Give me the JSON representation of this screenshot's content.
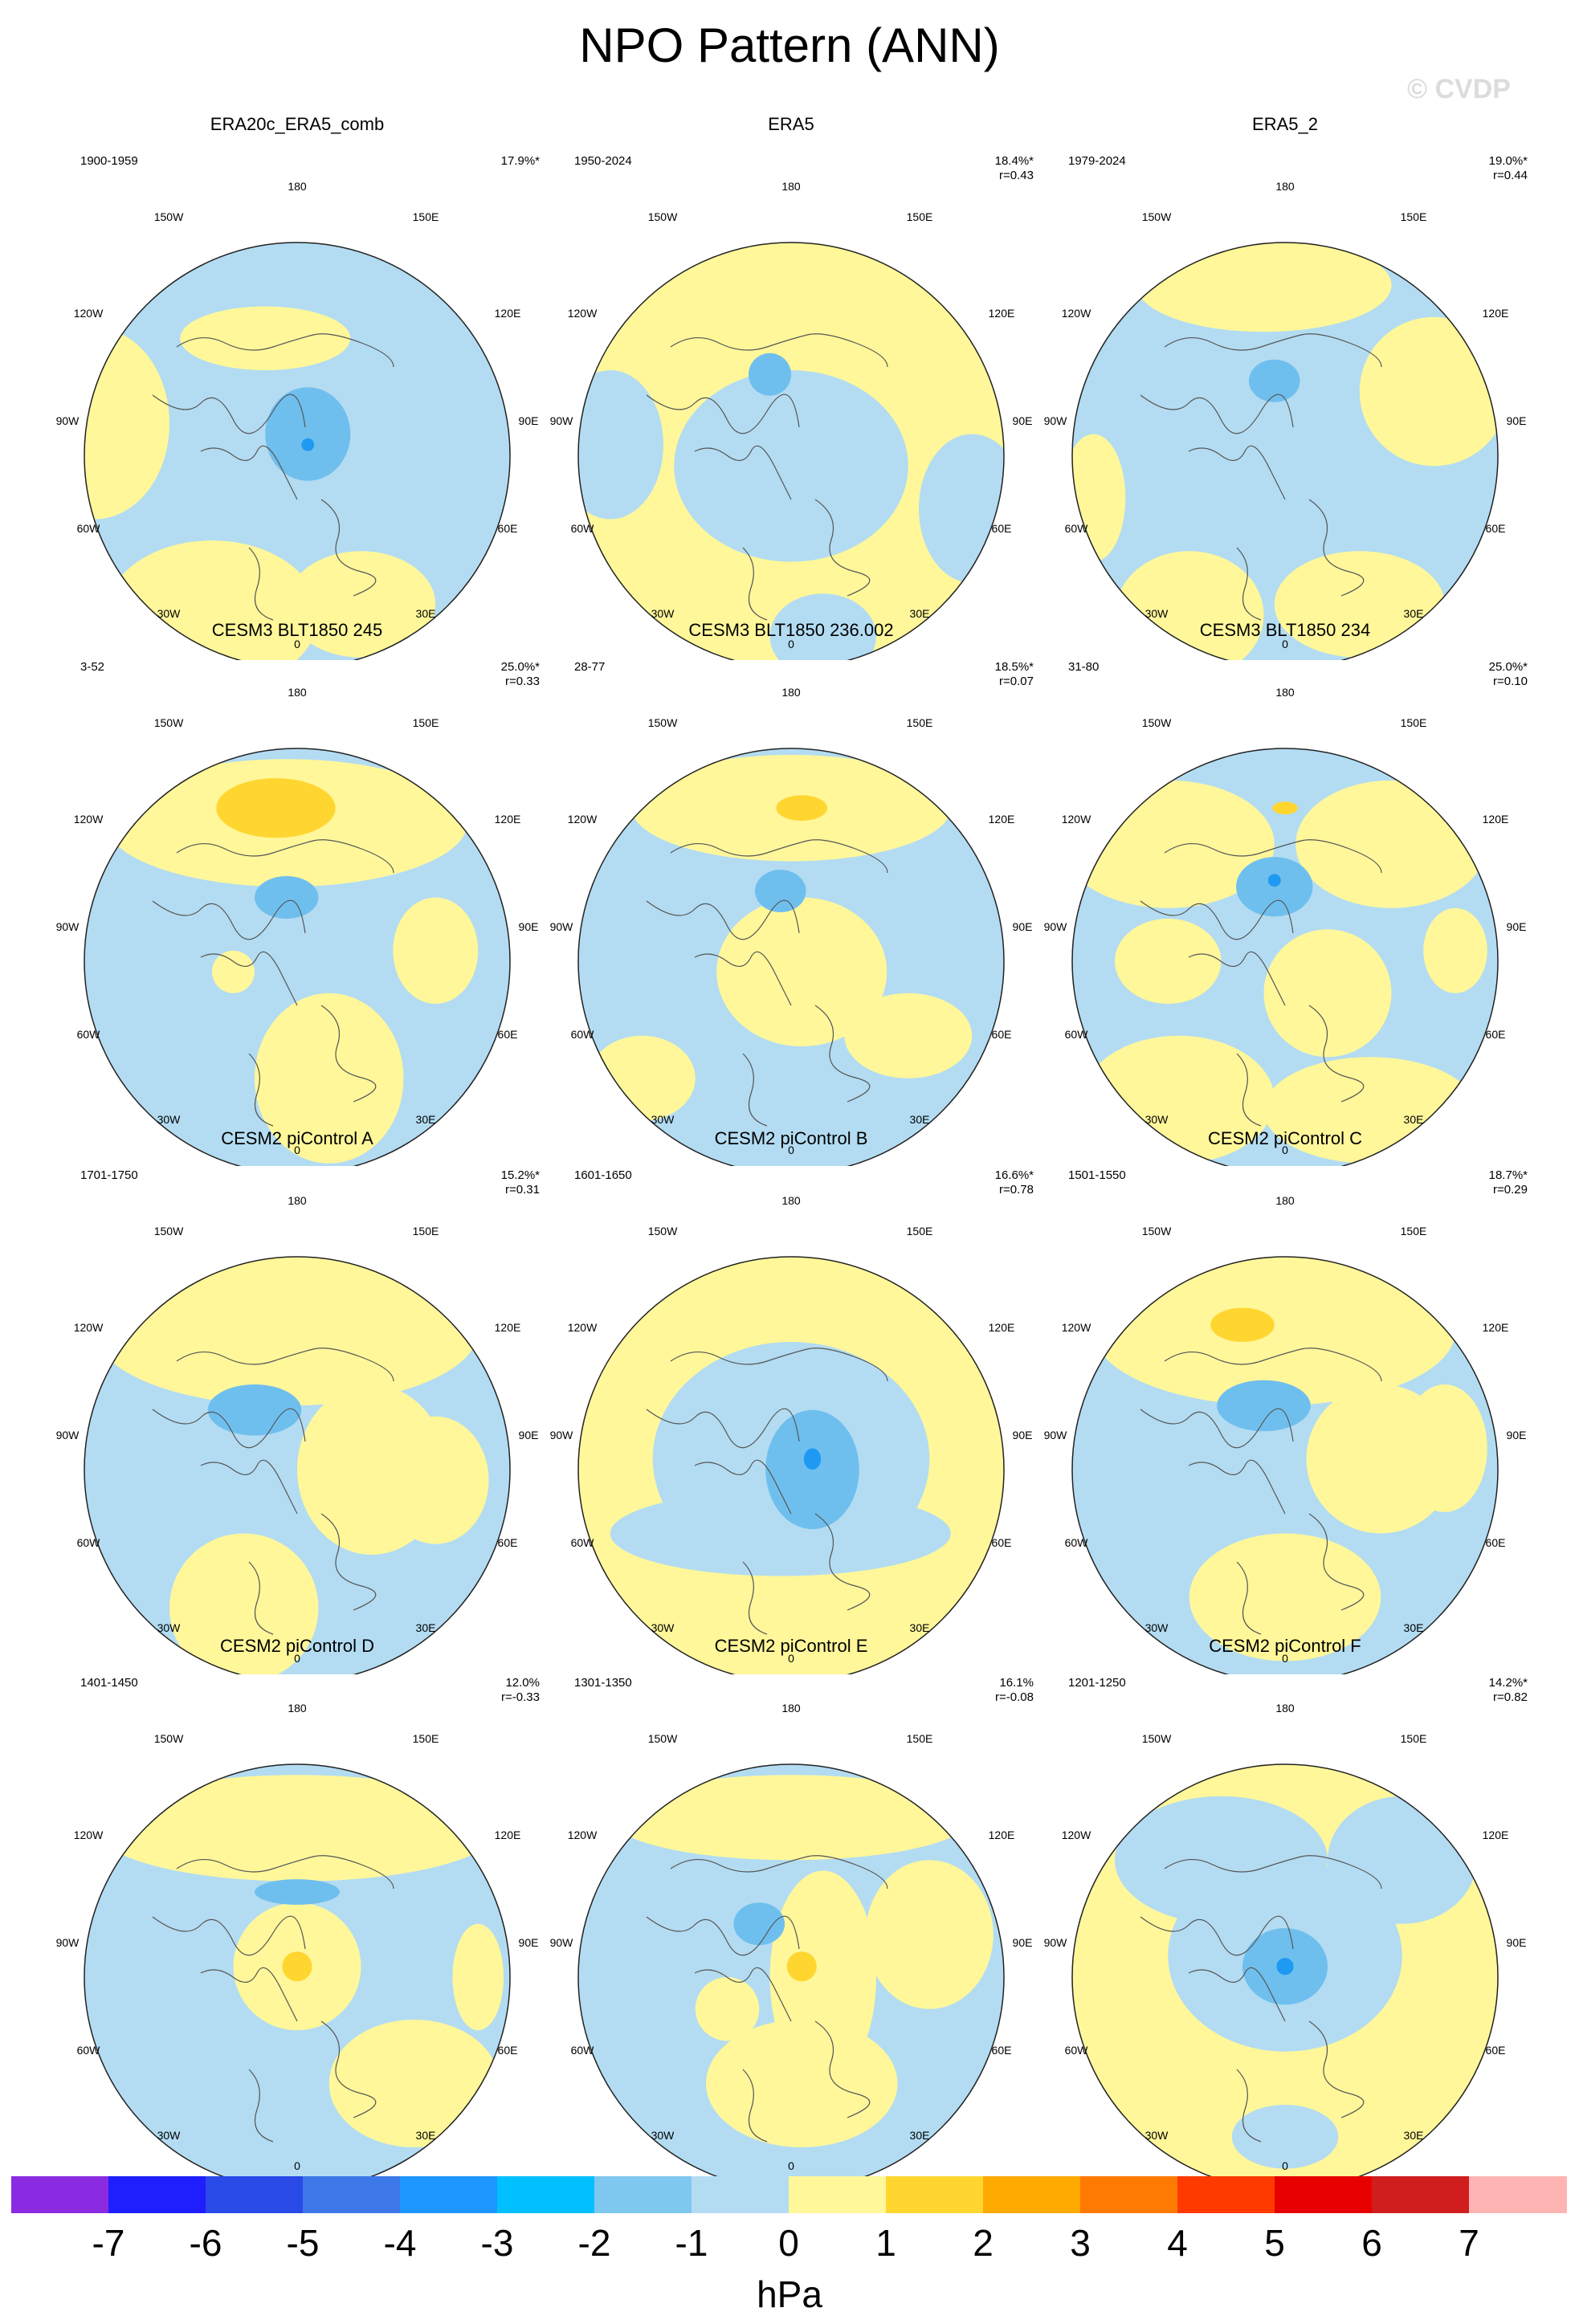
{
  "title": "NPO Pattern (ANN)",
  "watermark": "© CVDP",
  "colors": {
    "pos": "#fff79a",
    "pos_strong": "#ffd630",
    "neg": "#b3dcf2",
    "neg_strong": "#6fbfee",
    "neg_core": "#1e9af2",
    "coast": "#555555",
    "rim": "#222222"
  },
  "map_labels": {
    "top": "180",
    "upper_left": "150W",
    "upper_right": "150E",
    "left_upper": "120W",
    "right_upper": "120E",
    "left_mid": "90W",
    "right_mid": "90E",
    "left_lower": "60W",
    "right_lower": "60E",
    "lower_left": "30W",
    "lower_right": "30E",
    "bottom": "0"
  },
  "panels": [
    {
      "title": "ERA20c_ERA5_comb",
      "period": "1900-1959",
      "pct": "17.9%*",
      "r": "",
      "base": "neg",
      "pos_blobs": [
        [
          -0.95,
          0.15,
          0.35,
          0.45
        ],
        [
          -0.4,
          -0.75,
          0.5,
          0.35
        ],
        [
          0.3,
          -0.7,
          0.35,
          0.25
        ],
        [
          -0.15,
          0.55,
          0.4,
          0.15
        ]
      ],
      "neg_strong": [
        [
          0.05,
          0.1,
          0.2,
          0.22
        ]
      ],
      "pos_strong": [],
      "neg_core": [
        [
          0.05,
          0.05,
          0.03,
          0.03
        ]
      ]
    },
    {
      "title": "ERA5",
      "period": "1950-2024",
      "pct": "18.4%*",
      "r": "r=0.43",
      "base": "pos",
      "neg_blobs": [
        [
          0.0,
          -0.05,
          0.55,
          0.45
        ],
        [
          -0.85,
          0.05,
          0.25,
          0.35
        ],
        [
          0.85,
          -0.25,
          0.25,
          0.35
        ],
        [
          0.15,
          -0.85,
          0.25,
          0.2
        ]
      ],
      "neg_strong": [
        [
          -0.1,
          0.38,
          0.1,
          0.1
        ]
      ],
      "pos_strong": [],
      "neg_core": []
    },
    {
      "title": "ERA5_2",
      "period": "1979-2024",
      "pct": "19.0%*",
      "r": "r=0.44",
      "base": "neg",
      "pos_blobs": [
        [
          -0.1,
          0.8,
          0.6,
          0.22
        ],
        [
          0.7,
          0.3,
          0.35,
          0.35
        ],
        [
          -0.45,
          -0.75,
          0.35,
          0.3
        ],
        [
          0.35,
          -0.7,
          0.4,
          0.25
        ],
        [
          -0.9,
          -0.2,
          0.15,
          0.3
        ]
      ],
      "neg_strong": [
        [
          -0.05,
          0.35,
          0.12,
          0.1
        ]
      ],
      "pos_strong": [],
      "neg_core": []
    },
    {
      "title": "CESM3 BLT1850 245",
      "period": "3-52",
      "pct": "25.0%*",
      "r": "r=0.33",
      "base": "neg",
      "pos_blobs": [
        [
          -0.05,
          0.65,
          0.85,
          0.3
        ],
        [
          0.15,
          -0.55,
          0.35,
          0.4
        ],
        [
          0.65,
          0.05,
          0.2,
          0.25
        ],
        [
          -0.3,
          -0.05,
          0.1,
          0.1
        ]
      ],
      "neg_strong": [
        [
          -0.05,
          0.3,
          0.15,
          0.1
        ]
      ],
      "pos_strong": [
        [
          -0.1,
          0.72,
          0.28,
          0.14
        ]
      ],
      "neg_core": []
    },
    {
      "title": "CESM3 BLT1850 236.002",
      "period": "28-77",
      "pct": "18.5%*",
      "r": "r=0.07",
      "base": "neg",
      "pos_blobs": [
        [
          0.0,
          0.72,
          0.75,
          0.25
        ],
        [
          0.05,
          -0.05,
          0.4,
          0.35
        ],
        [
          -0.7,
          -0.55,
          0.25,
          0.2
        ],
        [
          0.55,
          -0.35,
          0.3,
          0.2
        ]
      ],
      "neg_strong": [
        [
          -0.05,
          0.33,
          0.12,
          0.1
        ]
      ],
      "pos_strong": [
        [
          0.05,
          0.72,
          0.12,
          0.06
        ]
      ],
      "neg_core": []
    },
    {
      "title": "CESM3 BLT1850 234",
      "period": "31-80",
      "pct": "25.0%*",
      "r": "r=0.10",
      "base": "neg",
      "pos_blobs": [
        [
          -0.55,
          0.55,
          0.5,
          0.3
        ],
        [
          0.5,
          0.55,
          0.45,
          0.3
        ],
        [
          0.2,
          -0.15,
          0.3,
          0.3
        ],
        [
          -0.5,
          -0.65,
          0.45,
          0.3
        ],
        [
          0.4,
          -0.7,
          0.5,
          0.25
        ],
        [
          -0.55,
          0.0,
          0.25,
          0.2
        ],
        [
          0.8,
          0.05,
          0.15,
          0.2
        ]
      ],
      "neg_strong": [
        [
          -0.05,
          0.35,
          0.18,
          0.14
        ]
      ],
      "pos_strong": [
        [
          0.0,
          0.72,
          0.06,
          0.03
        ]
      ],
      "neg_core": [
        [
          -0.05,
          0.38,
          0.03,
          0.03
        ]
      ]
    },
    {
      "title": "CESM2 piControl A",
      "period": "1701-1750",
      "pct": "15.2%*",
      "r": "r=0.31",
      "base": "neg",
      "pos_blobs": [
        [
          -0.05,
          0.65,
          0.9,
          0.35
        ],
        [
          0.35,
          0.0,
          0.35,
          0.4
        ],
        [
          -0.25,
          -0.65,
          0.35,
          0.35
        ],
        [
          0.65,
          -0.05,
          0.25,
          0.3
        ]
      ],
      "neg_strong": [
        [
          -0.2,
          0.28,
          0.22,
          0.12
        ]
      ],
      "pos_strong": [],
      "neg_core": []
    },
    {
      "title": "CESM2 piControl B",
      "period": "1601-1650",
      "pct": "16.6%*",
      "r": "r=0.78",
      "base": "pos",
      "neg_blobs": [
        [
          0.0,
          0.05,
          0.65,
          0.55
        ],
        [
          -0.05,
          -0.3,
          0.8,
          0.2
        ]
      ],
      "neg_strong": [
        [
          0.1,
          0.0,
          0.22,
          0.28
        ]
      ],
      "pos_strong": [],
      "neg_core": [
        [
          0.1,
          0.05,
          0.04,
          0.05
        ]
      ]
    },
    {
      "title": "CESM2 piControl C",
      "period": "1501-1550",
      "pct": "18.7%*",
      "r": "r=0.29",
      "base": "neg",
      "pos_blobs": [
        [
          -0.05,
          0.65,
          0.85,
          0.35
        ],
        [
          0.45,
          0.05,
          0.35,
          0.35
        ],
        [
          0.0,
          -0.6,
          0.45,
          0.3
        ],
        [
          0.75,
          0.1,
          0.2,
          0.3
        ]
      ],
      "neg_strong": [
        [
          -0.1,
          0.3,
          0.22,
          0.12
        ]
      ],
      "pos_strong": [
        [
          -0.2,
          0.68,
          0.15,
          0.08
        ]
      ],
      "neg_core": []
    },
    {
      "title": "CESM2 piControl D",
      "period": "1401-1450",
      "pct": "12.0%",
      "r": "r=-0.33",
      "base": "neg",
      "pos_blobs": [
        [
          0.0,
          0.7,
          0.95,
          0.25
        ],
        [
          0.0,
          0.05,
          0.3,
          0.3
        ],
        [
          0.55,
          -0.5,
          0.4,
          0.3
        ],
        [
          0.85,
          0.0,
          0.12,
          0.25
        ]
      ],
      "neg_strong": [
        [
          0.0,
          0.4,
          0.2,
          0.06
        ]
      ],
      "pos_strong": [
        [
          0.0,
          0.05,
          0.07,
          0.07
        ]
      ],
      "neg_core": []
    },
    {
      "title": "CESM2 piControl E",
      "period": "1301-1350",
      "pct": "16.1%",
      "r": "r=-0.08",
      "base": "neg",
      "pos_blobs": [
        [
          0.0,
          0.75,
          0.85,
          0.2
        ],
        [
          0.15,
          0.0,
          0.25,
          0.5
        ],
        [
          0.05,
          -0.5,
          0.45,
          0.3
        ],
        [
          0.65,
          0.2,
          0.3,
          0.35
        ],
        [
          -0.3,
          -0.15,
          0.15,
          0.15
        ]
      ],
      "neg_strong": [
        [
          -0.15,
          0.25,
          0.12,
          0.1
        ]
      ],
      "pos_strong": [
        [
          0.05,
          0.05,
          0.07,
          0.07
        ]
      ],
      "neg_core": []
    },
    {
      "title": "CESM2 piControl F",
      "period": "1201-1250",
      "pct": "14.2%*",
      "r": "r=0.82",
      "base": "pos",
      "neg_blobs": [
        [
          0.0,
          0.1,
          0.55,
          0.45
        ],
        [
          -0.3,
          0.55,
          0.5,
          0.3
        ],
        [
          0.55,
          0.55,
          0.35,
          0.3
        ],
        [
          0.0,
          -0.75,
          0.25,
          0.15
        ]
      ],
      "neg_strong": [
        [
          0.0,
          0.05,
          0.2,
          0.18
        ]
      ],
      "pos_strong": [],
      "neg_core": [
        [
          0.0,
          0.05,
          0.04,
          0.04
        ]
      ]
    }
  ],
  "colorbar": {
    "colors": [
      "#8a2be2",
      "#1e1eff",
      "#2a4ae8",
      "#3c78e8",
      "#1e96ff",
      "#00c0ff",
      "#7ec8f0",
      "#b3dcf2",
      "#fff79a",
      "#ffd630",
      "#ffaa00",
      "#ff7a00",
      "#ff3a00",
      "#e80000",
      "#d01e1e",
      "#ffb4b4"
    ],
    "ticks": [
      "-7",
      "-6",
      "-5",
      "-4",
      "-3",
      "-2",
      "-1",
      "0",
      "1",
      "2",
      "3",
      "4",
      "5",
      "6",
      "7"
    ],
    "units": "hPa"
  }
}
